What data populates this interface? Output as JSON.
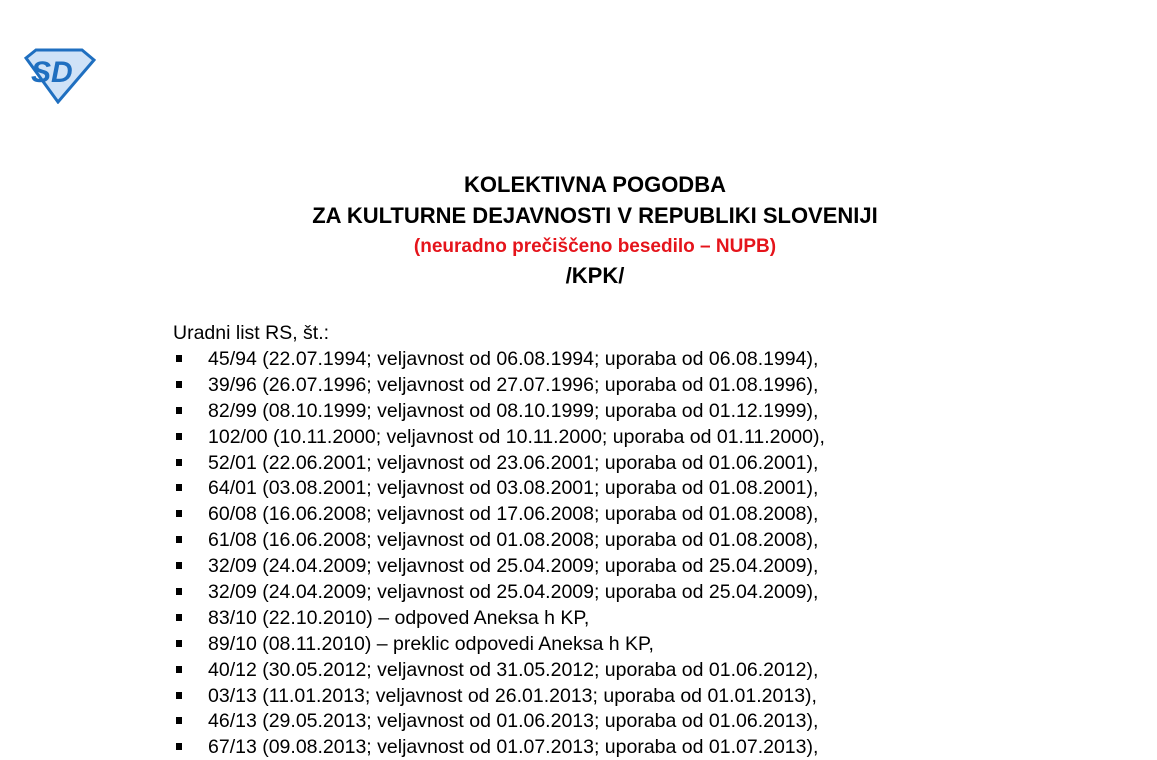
{
  "logo": {
    "text": "SD",
    "color": "#1f6fc0",
    "fill": "#cfe2f7"
  },
  "title": {
    "line1": "KOLEKTIVNA POGODBA",
    "line2": "ZA KULTURNE DEJAVNOSTI V REPUBLIKI SLOVENIJI",
    "subtitle": "(neuradno prečiščeno besedilo – NUPB)",
    "abbr": "/KPK/",
    "subtitle_color": "#e5141b"
  },
  "intro": "Uradni list RS, št.:",
  "items": [
    "45/94 (22.07.1994; veljavnost od 06.08.1994; uporaba od 06.08.1994),",
    "39/96 (26.07.1996; veljavnost od 27.07.1996; uporaba od 01.08.1996),",
    "82/99 (08.10.1999; veljavnost od 08.10.1999; uporaba od 01.12.1999),",
    "102/00 (10.11.2000; veljavnost od 10.11.2000; uporaba od 01.11.2000),",
    "52/01 (22.06.2001; veljavnost od 23.06.2001; uporaba od 01.06.2001),",
    "64/01 (03.08.2001; veljavnost od 03.08.2001; uporaba od 01.08.2001),",
    "60/08 (16.06.2008; veljavnost od 17.06.2008; uporaba od 01.08.2008),",
    "61/08 (16.06.2008; veljavnost od 01.08.2008; uporaba od 01.08.2008),",
    "32/09 (24.04.2009; veljavnost od 25.04.2009; uporaba od 25.04.2009),",
    "32/09 (24.04.2009; veljavnost od 25.04.2009; uporaba od 25.04.2009),",
    "83/10 (22.10.2010) – odpoved Aneksa h KP,",
    "89/10 (08.11.2010) – preklic odpovedi Aneksa h KP,",
    "40/12 (30.05.2012; veljavnost od 31.05.2012; uporaba od 01.06.2012),",
    "03/13 (11.01.2013; veljavnost od 26.01.2013; uporaba od 01.01.2013),",
    "46/13 (29.05.2013; veljavnost od 01.06.2013; uporaba od 01.06.2013),",
    "67/13 (09.08.2013; veljavnost od 01.07.2013; uporaba od 01.07.2013),"
  ]
}
